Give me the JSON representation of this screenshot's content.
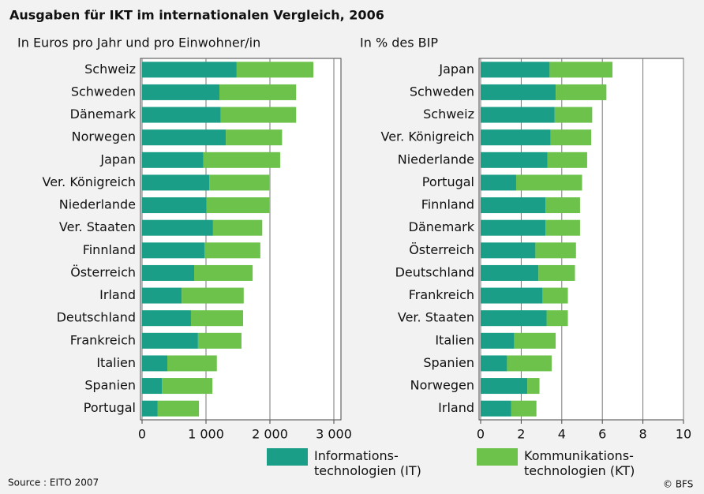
{
  "title": "Ausgaben für IKT im internationalen Vergleich, 2006",
  "source": "Source : EITO 2007",
  "credit": "© BFS",
  "chart_data": [
    {
      "type": "bar",
      "orientation": "horizontal",
      "stacked": true,
      "subtitle": "In Euros pro Jahr und pro Einwohner/in",
      "categories": [
        "Schweiz",
        "Schweden",
        "Dänemark",
        "Norwegen",
        "Japan",
        "Ver. Königreich",
        "Niederlande",
        "Ver. Staaten",
        "Finnland",
        "Österreich",
        "Irland",
        "Deutschland",
        "Frankreich",
        "Italien",
        "Spanien",
        "Portugal"
      ],
      "series": [
        {
          "name": "Informations-\ntechnologien (IT)",
          "color": "#1a9e88",
          "values": [
            1480,
            1210,
            1230,
            1310,
            960,
            1050,
            1010,
            1110,
            975,
            815,
            620,
            765,
            875,
            395,
            310,
            245
          ]
        },
        {
          "name": "Kommunikations-\ntechnologien (KT)",
          "color": "#6cc24a",
          "values": [
            1200,
            1200,
            1180,
            880,
            1200,
            940,
            980,
            770,
            875,
            915,
            970,
            815,
            680,
            775,
            790,
            645
          ]
        }
      ],
      "xlim": [
        0,
        3000
      ],
      "xticks": [
        0,
        {
          "value": 1000,
          "label": "1 000"
        },
        {
          "value": 2000,
          "label": "2 000"
        },
        {
          "value": 3000,
          "label": "3 000"
        }
      ],
      "grid": true
    },
    {
      "type": "bar",
      "orientation": "horizontal",
      "stacked": true,
      "subtitle": "In % des BIP",
      "categories": [
        "Japan",
        "Schweden",
        "Schweiz",
        "Ver. Königreich",
        "Niederlande",
        "Portugal",
        "Finnland",
        "Dänemark",
        "Österreich",
        "Deutschland",
        "Frankreich",
        "Ver. Staaten",
        "Italien",
        "Spanien",
        "Norwegen",
        "Irland"
      ],
      "series": [
        {
          "color": "#1a9e88",
          "values": [
            3.4,
            3.7,
            3.65,
            3.45,
            3.3,
            1.75,
            3.2,
            3.2,
            2.7,
            2.85,
            3.05,
            3.25,
            1.65,
            1.3,
            2.3,
            1.5
          ]
        },
        {
          "color": "#6cc24a",
          "values": [
            3.1,
            2.5,
            1.85,
            2.0,
            1.95,
            3.25,
            1.7,
            1.7,
            2.0,
            1.8,
            1.25,
            1.05,
            2.05,
            2.2,
            0.6,
            1.25
          ]
        }
      ],
      "xlim": [
        0,
        10
      ],
      "xticks": [
        0,
        2,
        4,
        6,
        8,
        10
      ],
      "grid": true
    }
  ]
}
